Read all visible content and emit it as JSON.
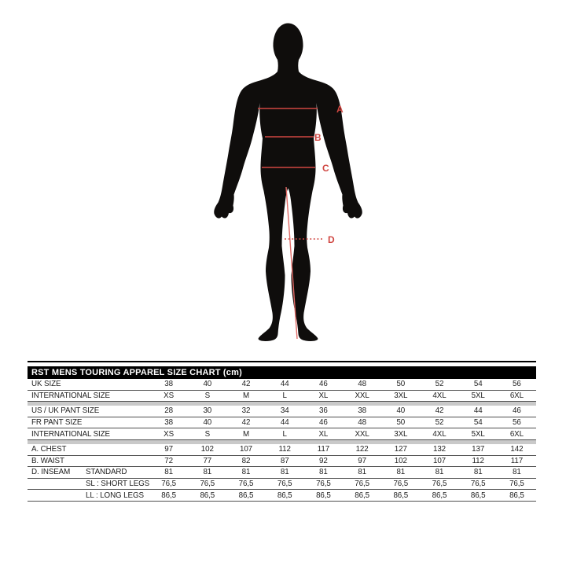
{
  "figure": {
    "description": "rear-view male body silhouette with measurement lines",
    "labels": {
      "a": "A",
      "b": "B",
      "c": "C",
      "d": "D"
    },
    "colors": {
      "body": "#0f0d0c",
      "measure_red": "#d04742"
    }
  },
  "table": {
    "title": "RST MENS TOURING APPAREL SIZE CHART (cm)",
    "colors": {
      "header_bg": "#000000",
      "header_text": "#ffffff",
      "separator_band": "#c9c9c9",
      "row_line": "#4e4e4e"
    },
    "rows": [
      {
        "type": "row",
        "label": "UK SIZE",
        "sub": null,
        "values": [
          "38",
          "40",
          "42",
          "44",
          "46",
          "48",
          "50",
          "52",
          "54",
          "56"
        ]
      },
      {
        "type": "row",
        "label": "INTERNATIONAL SIZE",
        "sub": null,
        "values": [
          "XS",
          "S",
          "M",
          "L",
          "XL",
          "XXL",
          "3XL",
          "4XL",
          "5XL",
          "6XL"
        ]
      },
      {
        "type": "separator"
      },
      {
        "type": "row",
        "label": "US / UK PANT SIZE",
        "sub": null,
        "values": [
          "28",
          "30",
          "32",
          "34",
          "36",
          "38",
          "40",
          "42",
          "44",
          "46"
        ]
      },
      {
        "type": "row",
        "label": "FR PANT SIZE",
        "sub": null,
        "values": [
          "38",
          "40",
          "42",
          "44",
          "46",
          "48",
          "50",
          "52",
          "54",
          "56"
        ]
      },
      {
        "type": "row",
        "label": "INTERNATIONAL SIZE",
        "sub": null,
        "values": [
          "XS",
          "S",
          "M",
          "L",
          "XL",
          "XXL",
          "3XL",
          "4XL",
          "5XL",
          "6XL"
        ]
      },
      {
        "type": "separator"
      },
      {
        "type": "row",
        "label": "A. CHEST",
        "sub": null,
        "values": [
          "97",
          "102",
          "107",
          "112",
          "117",
          "122",
          "127",
          "132",
          "137",
          "142"
        ]
      },
      {
        "type": "row",
        "label": "B. WAIST",
        "sub": null,
        "values": [
          "72",
          "77",
          "82",
          "87",
          "92",
          "97",
          "102",
          "107",
          "112",
          "117"
        ]
      },
      {
        "type": "row",
        "label": "D. INSEAM",
        "sub": "STANDARD",
        "values": [
          "81",
          "81",
          "81",
          "81",
          "81",
          "81",
          "81",
          "81",
          "81",
          "81"
        ]
      },
      {
        "type": "row",
        "label": "",
        "sub": "SL : SHORT LEGS",
        "values": [
          "76,5",
          "76,5",
          "76,5",
          "76,5",
          "76,5",
          "76,5",
          "76,5",
          "76,5",
          "76,5",
          "76,5"
        ]
      },
      {
        "type": "row",
        "label": "",
        "sub": "LL : LONG LEGS",
        "values": [
          "86,5",
          "86,5",
          "86,5",
          "86,5",
          "86,5",
          "86,5",
          "86,5",
          "86,5",
          "86,5",
          "86,5"
        ]
      }
    ]
  },
  "chart_data": {
    "type": "table",
    "title": "RST MENS TOURING APPAREL SIZE CHART (cm)",
    "units": "cm",
    "figure_labels": [
      "A",
      "B",
      "C",
      "D"
    ],
    "rows": [
      {
        "label": "UK SIZE",
        "values": [
          "38",
          "40",
          "42",
          "44",
          "46",
          "48",
          "50",
          "52",
          "54",
          "56"
        ]
      },
      {
        "label": "INTERNATIONAL SIZE",
        "values": [
          "XS",
          "S",
          "M",
          "L",
          "XL",
          "XXL",
          "3XL",
          "4XL",
          "5XL",
          "6XL"
        ]
      },
      {
        "label": "US / UK PANT SIZE",
        "values": [
          "28",
          "30",
          "32",
          "34",
          "36",
          "38",
          "40",
          "42",
          "44",
          "46"
        ]
      },
      {
        "label": "FR PANT SIZE",
        "values": [
          "38",
          "40",
          "42",
          "44",
          "46",
          "48",
          "50",
          "52",
          "54",
          "56"
        ]
      },
      {
        "label": "INTERNATIONAL SIZE",
        "values": [
          "XS",
          "S",
          "M",
          "L",
          "XL",
          "XXL",
          "3XL",
          "4XL",
          "5XL",
          "6XL"
        ]
      },
      {
        "label": "A. CHEST",
        "values": [
          97,
          102,
          107,
          112,
          117,
          122,
          127,
          132,
          137,
          142
        ]
      },
      {
        "label": "B. WAIST",
        "values": [
          72,
          77,
          82,
          87,
          92,
          97,
          102,
          107,
          112,
          117
        ]
      },
      {
        "label": "D. INSEAM STANDARD",
        "values": [
          81,
          81,
          81,
          81,
          81,
          81,
          81,
          81,
          81,
          81
        ]
      },
      {
        "label": "D. INSEAM SL : SHORT LEGS",
        "values": [
          76.5,
          76.5,
          76.5,
          76.5,
          76.5,
          76.5,
          76.5,
          76.5,
          76.5,
          76.5
        ]
      },
      {
        "label": "D. INSEAM LL : LONG LEGS",
        "values": [
          86.5,
          86.5,
          86.5,
          86.5,
          86.5,
          86.5,
          86.5,
          86.5,
          86.5,
          86.5
        ]
      }
    ]
  }
}
